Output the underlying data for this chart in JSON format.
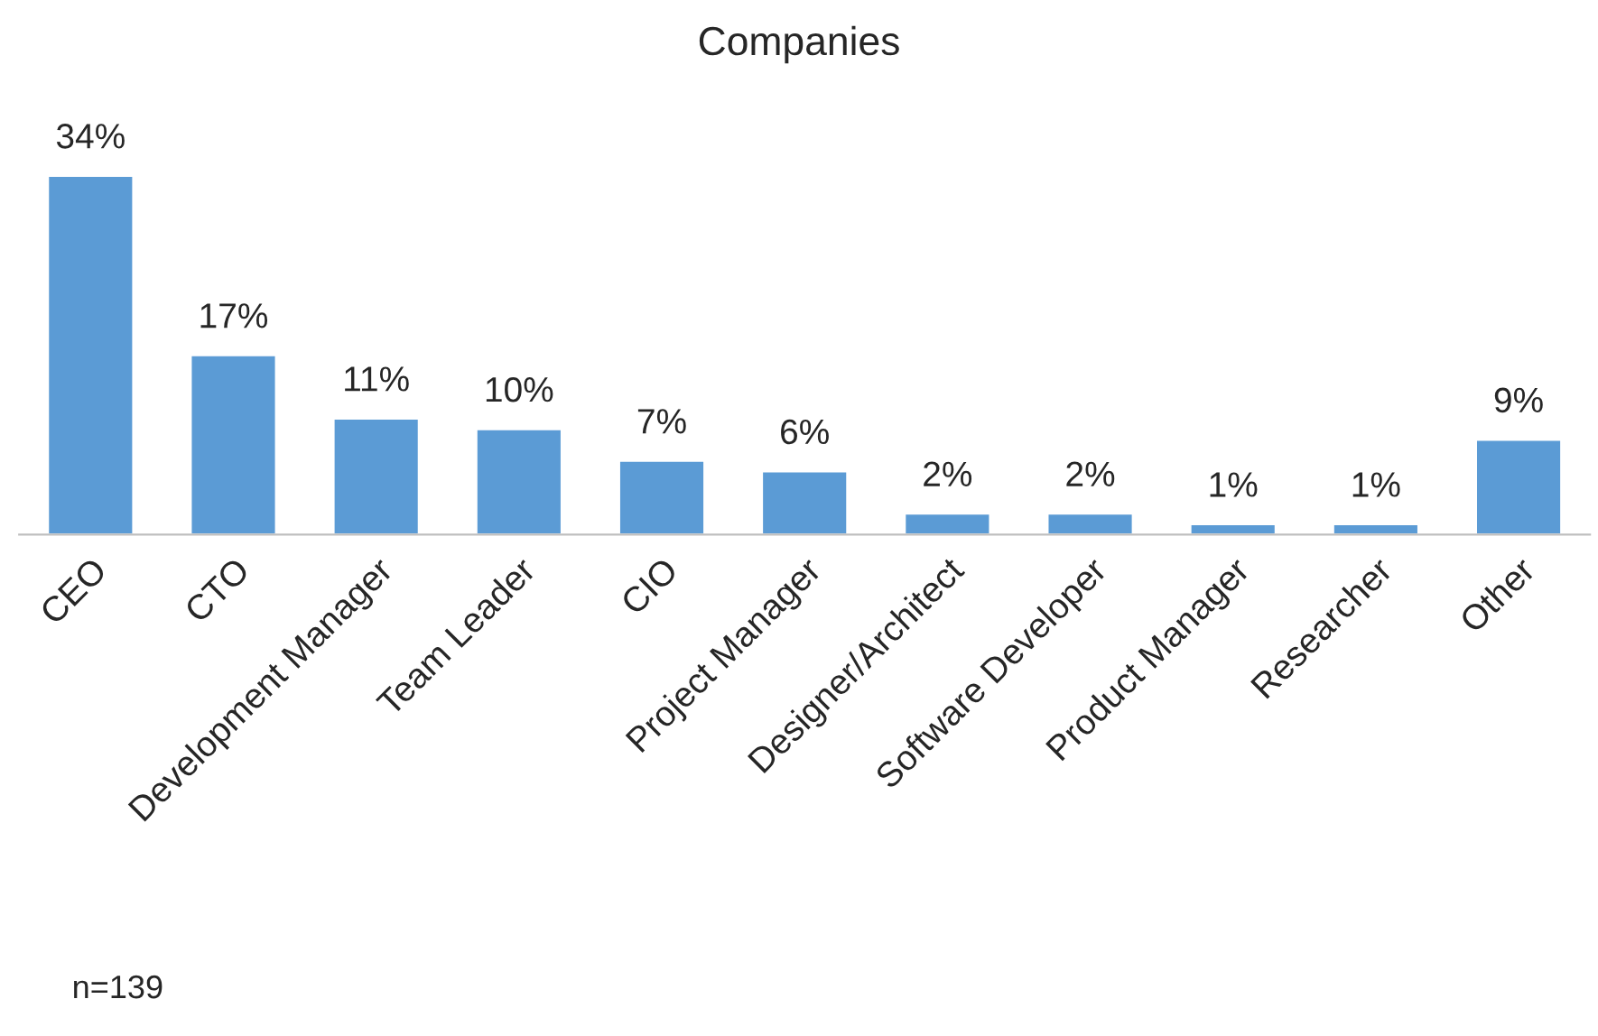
{
  "chart_data": {
    "type": "bar",
    "title": "Companies",
    "categories": [
      "CEO",
      "CTO",
      "Development Manager",
      "Team Leader",
      "CIO",
      "Project Manager",
      "Designer/Architect",
      "Software Developer",
      "Product Manager",
      "Researcher",
      "Other"
    ],
    "values": [
      34,
      17,
      11,
      10,
      7,
      6,
      2,
      2,
      1,
      1,
      9
    ],
    "value_labels": [
      "34%",
      "17%",
      "11%",
      "10%",
      "7%",
      "6%",
      "2%",
      "2%",
      "1%",
      "1%",
      "9%"
    ],
    "color": "#5b9bd5",
    "annotations": [
      "n=139"
    ]
  }
}
